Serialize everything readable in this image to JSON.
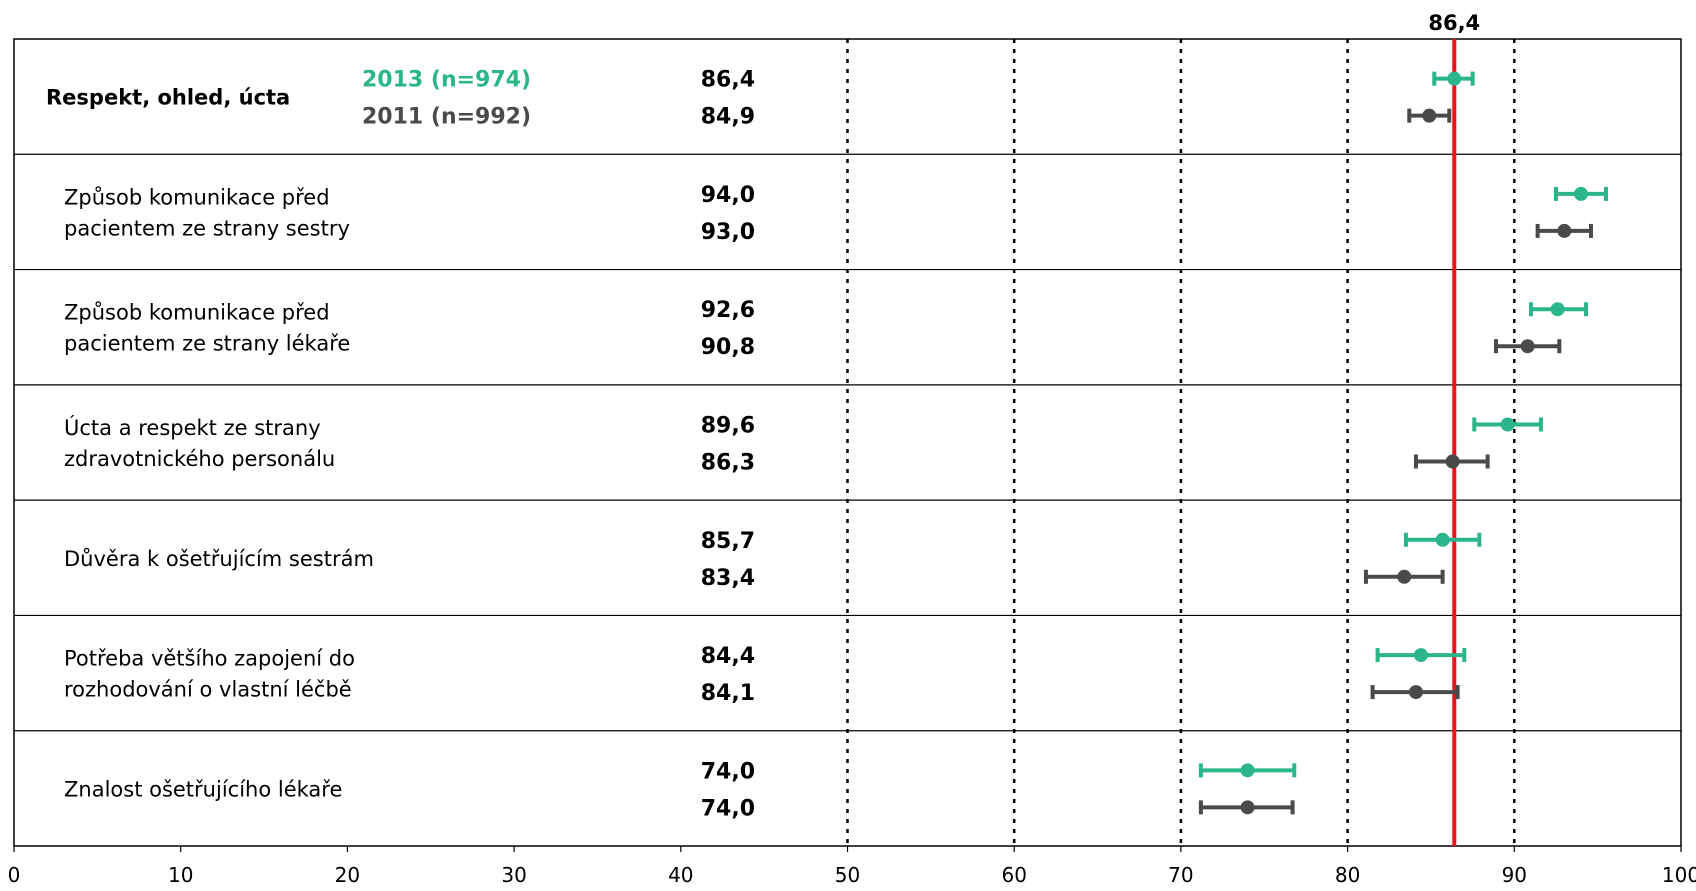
{
  "chart_data": {
    "type": "dot-plot-with-error-bars",
    "xlim": [
      0,
      100
    ],
    "x_ticks": [
      "0",
      "10",
      "20",
      "30",
      "40",
      "50",
      "60",
      "70",
      "80",
      "90",
      "100"
    ],
    "grid": "dotted vertical at 50, 60, 70, 80, 90",
    "reference_line": {
      "value": 86.4,
      "label": "86,4",
      "color": "#e8141c"
    },
    "series": [
      {
        "name": "2013 (n=974)",
        "color": "#2bb58a"
      },
      {
        "name": "2011 (n=992)",
        "color": "#4a4a4a"
      }
    ],
    "categories": [
      {
        "lines": [
          "Respekt, ohled, úcta"
        ],
        "bold": true,
        "values": [
          86.4,
          84.9
        ],
        "labels": [
          "86,4",
          "84,9"
        ],
        "ci": [
          [
            85.2,
            87.5
          ],
          [
            83.7,
            86.1
          ]
        ]
      },
      {
        "lines": [
          "Způsob komunikace před",
          "pacientem ze strany sestry"
        ],
        "bold": false,
        "values": [
          94.0,
          93.0
        ],
        "labels": [
          "94,0",
          "93,0"
        ],
        "ci": [
          [
            92.5,
            95.5
          ],
          [
            91.4,
            94.6
          ]
        ]
      },
      {
        "lines": [
          "Způsob komunikace před",
          "pacientem ze strany lékaře"
        ],
        "bold": false,
        "values": [
          92.6,
          90.8
        ],
        "labels": [
          "92,6",
          "90,8"
        ],
        "ci": [
          [
            91.0,
            94.3
          ],
          [
            88.9,
            92.7
          ]
        ]
      },
      {
        "lines": [
          "Úcta a respekt ze strany",
          "zdravotnického personálu"
        ],
        "bold": false,
        "values": [
          89.6,
          86.3
        ],
        "labels": [
          "89,6",
          "86,3"
        ],
        "ci": [
          [
            87.6,
            91.6
          ],
          [
            84.1,
            88.4
          ]
        ]
      },
      {
        "lines": [
          "Důvěra k ošetřujícím sestrám"
        ],
        "bold": false,
        "values": [
          85.7,
          83.4
        ],
        "labels": [
          "85,7",
          "83,4"
        ],
        "ci": [
          [
            83.5,
            87.9
          ],
          [
            81.1,
            85.7
          ]
        ]
      },
      {
        "lines": [
          "Potřeba většího zapojení do",
          "rozhodování o vlastní léčbě"
        ],
        "bold": false,
        "values": [
          84.4,
          84.1
        ],
        "labels": [
          "84,4",
          "84,1"
        ],
        "ci": [
          [
            81.8,
            87.0
          ],
          [
            81.5,
            86.6
          ]
        ]
      },
      {
        "lines": [
          "Znalost ošetřujícího lékaře"
        ],
        "bold": false,
        "values": [
          74.0,
          74.0
        ],
        "labels": [
          "74,0",
          "74,0"
        ],
        "ci": [
          [
            71.2,
            76.8
          ],
          [
            71.2,
            76.7
          ]
        ]
      }
    ]
  }
}
